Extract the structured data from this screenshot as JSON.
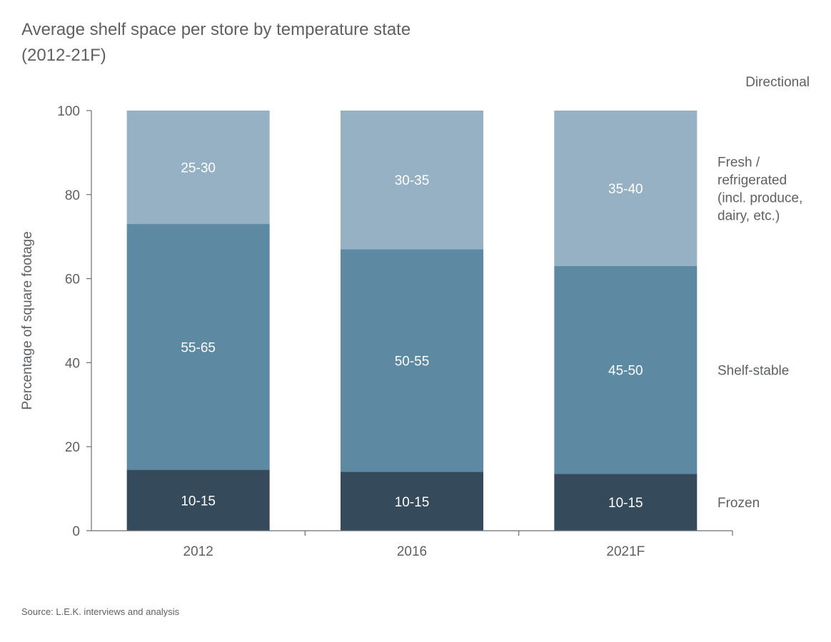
{
  "title_line1": "Average shelf space per store by temperature state",
  "title_line2": "(2012-21F)",
  "note": "Directional",
  "source": "Source: L.E.K. interviews and analysis",
  "colors": {
    "frozen": "#354b5b",
    "shelf_stable": "#5d89a3",
    "fresh": "#97b1c4",
    "axis": "#6b6f73",
    "text": "#5d6165"
  },
  "chart_data": {
    "type": "bar",
    "stacked": true,
    "categories": [
      "2012",
      "2016",
      "2021F"
    ],
    "ylabel": "Percentage of square footage",
    "xlabel": "",
    "ylim": [
      0,
      100
    ],
    "yticks": [
      "0",
      "20",
      "40",
      "60",
      "80",
      "100"
    ],
    "grid": false,
    "legend": "right",
    "series": [
      {
        "name": "Frozen",
        "legend_lines": [
          "Frozen"
        ],
        "values": [
          14.5,
          14,
          13.5
        ],
        "labels": [
          "10-15",
          "10-15",
          "10-15"
        ]
      },
      {
        "name": "Shelf-stable",
        "legend_lines": [
          "Shelf-stable"
        ],
        "values": [
          58.5,
          53,
          49.5
        ],
        "labels": [
          "55-65",
          "50-55",
          "45-50"
        ]
      },
      {
        "name": "Fresh / refrigerated (incl. produce, dairy, etc.)",
        "legend_lines": [
          "Fresh /",
          "refrigerated",
          "(incl. produce,",
          "dairy, etc.)"
        ],
        "values": [
          27,
          33,
          37
        ],
        "labels": [
          "25-30",
          "30-35",
          "35-40"
        ]
      }
    ]
  }
}
